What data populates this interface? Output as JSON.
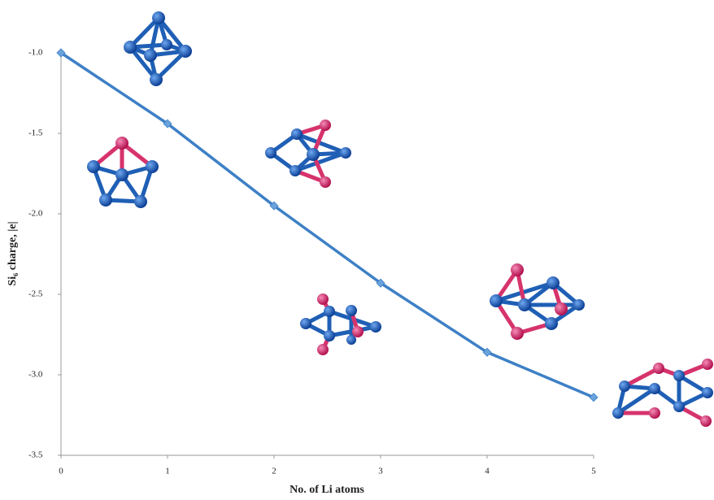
{
  "chart_data": {
    "type": "line",
    "xlabel": "No. of Li atoms",
    "ylabel": "Si₆ charge, |e|",
    "x": [
      0,
      1,
      2,
      3,
      4,
      5
    ],
    "values": [
      -1.0,
      -1.44,
      -1.95,
      -2.43,
      -2.86,
      -3.14
    ],
    "color": "#3d80c6",
    "marker_color": "#6aa3dc",
    "xlim": [
      0,
      5
    ],
    "xticks": [
      0,
      1,
      2,
      3,
      4,
      5
    ],
    "ylim": [
      -3.5,
      -1.0
    ],
    "yticks": [
      {
        "value": -3.5,
        "label": "-3.5"
      },
      {
        "value": -3.0,
        "label": "-3.0"
      },
      {
        "value": -2.5,
        "label": "-2.5"
      },
      {
        "value": -2.0,
        "label": "-2.0"
      },
      {
        "value": -1.5,
        "label": "-1.5"
      },
      {
        "value": -1.0,
        "label": "-1.0"
      }
    ],
    "grid": false
  }
}
